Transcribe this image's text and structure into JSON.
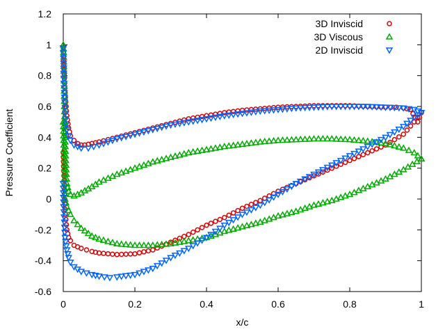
{
  "chart_data": {
    "type": "scatter",
    "title": "",
    "xlabel": "x/c",
    "ylabel": "Pressure Coefficient",
    "xlim": [
      0,
      1
    ],
    "ylim": [
      -0.6,
      1.2
    ],
    "xticks": [
      0,
      0.2,
      0.4,
      0.6,
      0.8,
      1
    ],
    "xtick_labels": [
      "0",
      "0.2",
      "0.4",
      "0.6",
      "0.8",
      "1"
    ],
    "yticks": [
      -0.6,
      -0.4,
      -0.2,
      0,
      0.2,
      0.4,
      0.6,
      0.8,
      1,
      1.2
    ],
    "ytick_labels": [
      "-0.6",
      "-0.4",
      "-0.2",
      "0",
      "0.2",
      "0.4",
      "0.6",
      "0.8",
      "1",
      "1.2"
    ],
    "grid": false,
    "legend_position": "top-right",
    "series": [
      {
        "name": "3D Inviscid",
        "marker": "circle",
        "color": "#dd0000",
        "branches": [
          [
            [
              0,
              0.98
            ],
            [
              0.001,
              0.9
            ],
            [
              0.003,
              0.78
            ],
            [
              0.006,
              0.66
            ],
            [
              0.01,
              0.54
            ],
            [
              0.015,
              0.46
            ],
            [
              0.02,
              0.41
            ],
            [
              0.03,
              0.38
            ],
            [
              0.04,
              0.36
            ],
            [
              0.05,
              0.35
            ],
            [
              0.06,
              0.35
            ],
            [
              0.08,
              0.36
            ],
            [
              0.1,
              0.37
            ],
            [
              0.15,
              0.4
            ],
            [
              0.2,
              0.43
            ],
            [
              0.25,
              0.46
            ],
            [
              0.3,
              0.49
            ],
            [
              0.35,
              0.52
            ],
            [
              0.4,
              0.54
            ],
            [
              0.45,
              0.56
            ],
            [
              0.5,
              0.575
            ],
            [
              0.55,
              0.585
            ],
            [
              0.6,
              0.595
            ],
            [
              0.65,
              0.6
            ],
            [
              0.7,
              0.605
            ],
            [
              0.75,
              0.605
            ],
            [
              0.8,
              0.605
            ],
            [
              0.85,
              0.6
            ],
            [
              0.9,
              0.595
            ],
            [
              0.93,
              0.595
            ],
            [
              0.95,
              0.59
            ],
            [
              0.97,
              0.58
            ],
            [
              0.99,
              0.5
            ],
            [
              1,
              0.56
            ]
          ],
          [
            [
              0,
              0.3
            ],
            [
              0.002,
              0.15
            ],
            [
              0.004,
              0.0
            ],
            [
              0.006,
              -0.1
            ],
            [
              0.01,
              -0.2
            ],
            [
              0.015,
              -0.25
            ],
            [
              0.02,
              -0.27
            ],
            [
              0.03,
              -0.3
            ],
            [
              0.05,
              -0.32
            ],
            [
              0.08,
              -0.34
            ],
            [
              0.1,
              -0.35
            ],
            [
              0.15,
              -0.36
            ],
            [
              0.2,
              -0.355
            ],
            [
              0.25,
              -0.33
            ],
            [
              0.3,
              -0.28
            ],
            [
              0.35,
              -0.23
            ],
            [
              0.4,
              -0.17
            ],
            [
              0.45,
              -0.12
            ],
            [
              0.5,
              -0.06
            ],
            [
              0.55,
              -0.01
            ],
            [
              0.6,
              0.05
            ],
            [
              0.65,
              0.1
            ],
            [
              0.7,
              0.15
            ],
            [
              0.75,
              0.2
            ],
            [
              0.8,
              0.25
            ],
            [
              0.85,
              0.3
            ],
            [
              0.9,
              0.35
            ],
            [
              0.95,
              0.42
            ],
            [
              0.98,
              0.5
            ],
            [
              1,
              0.56
            ]
          ]
        ]
      },
      {
        "name": "3D Viscous",
        "marker": "triangle-up",
        "color": "#00aa00",
        "branches": [
          [
            [
              0,
              1.0
            ],
            [
              0.001,
              0.95
            ],
            [
              0.002,
              0.8
            ],
            [
              0.003,
              0.6
            ],
            [
              0.005,
              0.4
            ],
            [
              0.007,
              0.25
            ],
            [
              0.01,
              0.1
            ],
            [
              0.015,
              0.05
            ],
            [
              0.02,
              0.03
            ],
            [
              0.03,
              0.02
            ],
            [
              0.05,
              0.04
            ],
            [
              0.08,
              0.08
            ],
            [
              0.1,
              0.11
            ],
            [
              0.15,
              0.16
            ],
            [
              0.2,
              0.2
            ],
            [
              0.25,
              0.24
            ],
            [
              0.3,
              0.27
            ],
            [
              0.35,
              0.3
            ],
            [
              0.4,
              0.32
            ],
            [
              0.45,
              0.34
            ],
            [
              0.5,
              0.355
            ],
            [
              0.55,
              0.37
            ],
            [
              0.6,
              0.38
            ],
            [
              0.65,
              0.385
            ],
            [
              0.7,
              0.39
            ],
            [
              0.75,
              0.39
            ],
            [
              0.8,
              0.385
            ],
            [
              0.85,
              0.375
            ],
            [
              0.9,
              0.36
            ],
            [
              0.95,
              0.33
            ],
            [
              0.98,
              0.3
            ],
            [
              1,
              0.26
            ]
          ],
          [
            [
              0,
              0.5
            ],
            [
              0.003,
              0.2
            ],
            [
              0.005,
              0.0
            ],
            [
              0.01,
              -0.05
            ],
            [
              0.02,
              -0.1
            ],
            [
              0.03,
              -0.14
            ],
            [
              0.05,
              -0.19
            ],
            [
              0.08,
              -0.24
            ],
            [
              0.1,
              -0.26
            ],
            [
              0.15,
              -0.29
            ],
            [
              0.2,
              -0.3
            ],
            [
              0.25,
              -0.3
            ],
            [
              0.3,
              -0.29
            ],
            [
              0.35,
              -0.27
            ],
            [
              0.4,
              -0.25
            ],
            [
              0.45,
              -0.21
            ],
            [
              0.5,
              -0.18
            ],
            [
              0.55,
              -0.15
            ],
            [
              0.6,
              -0.11
            ],
            [
              0.65,
              -0.08
            ],
            [
              0.7,
              -0.04
            ],
            [
              0.75,
              -0.01
            ],
            [
              0.8,
              0.03
            ],
            [
              0.85,
              0.08
            ],
            [
              0.9,
              0.13
            ],
            [
              0.95,
              0.19
            ],
            [
              1,
              0.26
            ]
          ]
        ]
      },
      {
        "name": "2D Inviscid",
        "marker": "triangle-down",
        "color": "#0066ff",
        "branches": [
          [
            [
              0,
              0.98
            ],
            [
              0.001,
              0.88
            ],
            [
              0.002,
              0.75
            ],
            [
              0.004,
              0.63
            ],
            [
              0.007,
              0.52
            ],
            [
              0.01,
              0.45
            ],
            [
              0.015,
              0.41
            ],
            [
              0.02,
              0.38
            ],
            [
              0.03,
              0.35
            ],
            [
              0.04,
              0.34
            ],
            [
              0.05,
              0.33
            ],
            [
              0.07,
              0.33
            ],
            [
              0.1,
              0.35
            ],
            [
              0.15,
              0.39
            ],
            [
              0.2,
              0.42
            ],
            [
              0.25,
              0.45
            ],
            [
              0.3,
              0.48
            ],
            [
              0.35,
              0.5
            ],
            [
              0.4,
              0.52
            ],
            [
              0.45,
              0.54
            ],
            [
              0.5,
              0.555
            ],
            [
              0.55,
              0.57
            ],
            [
              0.6,
              0.58
            ],
            [
              0.65,
              0.59
            ],
            [
              0.7,
              0.595
            ],
            [
              0.75,
              0.6
            ],
            [
              0.8,
              0.6
            ],
            [
              0.85,
              0.6
            ],
            [
              0.9,
              0.595
            ],
            [
              0.95,
              0.59
            ],
            [
              0.98,
              0.58
            ],
            [
              1,
              0.56
            ]
          ],
          [
            [
              0,
              0.1
            ],
            [
              0.001,
              -0.05
            ],
            [
              0.003,
              -0.15
            ],
            [
              0.005,
              -0.25
            ],
            [
              0.01,
              -0.33
            ],
            [
              0.015,
              -0.38
            ],
            [
              0.02,
              -0.41
            ],
            [
              0.03,
              -0.44
            ],
            [
              0.05,
              -0.47
            ],
            [
              0.08,
              -0.49
            ],
            [
              0.1,
              -0.5
            ],
            [
              0.13,
              -0.51
            ],
            [
              0.15,
              -0.505
            ],
            [
              0.2,
              -0.49
            ],
            [
              0.25,
              -0.45
            ],
            [
              0.3,
              -0.38
            ],
            [
              0.35,
              -0.32
            ],
            [
              0.4,
              -0.25
            ],
            [
              0.45,
              -0.17
            ],
            [
              0.5,
              -0.1
            ],
            [
              0.55,
              -0.04
            ],
            [
              0.6,
              0.03
            ],
            [
              0.65,
              0.1
            ],
            [
              0.7,
              0.16
            ],
            [
              0.75,
              0.22
            ],
            [
              0.8,
              0.28
            ],
            [
              0.85,
              0.34
            ],
            [
              0.9,
              0.4
            ],
            [
              0.95,
              0.47
            ],
            [
              0.98,
              0.53
            ],
            [
              1,
              0.56
            ]
          ]
        ]
      }
    ]
  }
}
